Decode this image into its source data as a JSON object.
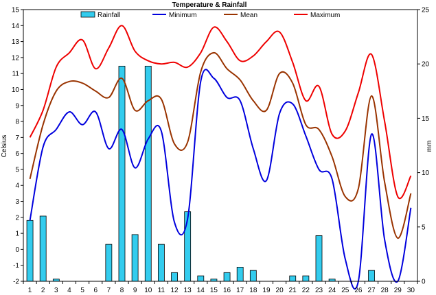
{
  "chart_data": {
    "type": "bar+line",
    "title": "Temperature & Rainfall",
    "ylabel_left": "Celsius",
    "ylabel_right": "mm",
    "x": [
      1,
      2,
      3,
      4,
      5,
      6,
      7,
      8,
      9,
      10,
      11,
      12,
      13,
      14,
      15,
      16,
      17,
      18,
      19,
      20,
      21,
      22,
      23,
      24,
      25,
      26,
      27,
      28,
      29,
      30
    ],
    "x_tick_labels": [
      "1",
      "2",
      "3",
      "4",
      "5",
      "6",
      "7",
      "8",
      "9",
      "10",
      "11",
      "12",
      "13",
      "14",
      "15",
      "16",
      "17",
      "18",
      "19",
      "20",
      "21",
      "22",
      "23",
      "24",
      "25",
      "26",
      "27",
      "28",
      "29",
      "30"
    ],
    "ylim_left": [
      -2,
      15
    ],
    "y_left_ticks": [
      "-2",
      "-1",
      "0",
      "1",
      "2",
      "3",
      "4",
      "5",
      "6",
      "7",
      "8",
      "9",
      "10",
      "11",
      "12",
      "13",
      "14",
      "15"
    ],
    "ylim_right": [
      0,
      25
    ],
    "y_right_ticks": [
      "0",
      "5",
      "10",
      "15",
      "20",
      "25"
    ],
    "legend": [
      "Rainfall",
      "Minimum",
      "Mean",
      "Maximum"
    ],
    "legend_position": "top",
    "colors": {
      "Rainfall": "#33CCEE",
      "Minimum": "#0000DD",
      "Mean": "#993300",
      "Maximum": "#EE0000"
    },
    "series": [
      {
        "name": "Rainfall",
        "axis": "right",
        "kind": "bar",
        "values": [
          5.6,
          6.0,
          0.2,
          0,
          0,
          0,
          3.4,
          19.8,
          4.3,
          19.8,
          3.4,
          0.8,
          6.4,
          0.5,
          0.2,
          0.8,
          1.3,
          1.0,
          0,
          0,
          0.5,
          0.5,
          4.2,
          0.2,
          0,
          0,
          1.0,
          0,
          0,
          0
        ]
      },
      {
        "name": "Minimum",
        "axis": "left",
        "kind": "line",
        "values": [
          1.8,
          6.4,
          7.5,
          8.6,
          7.8,
          8.6,
          6.3,
          7.5,
          5.1,
          6.9,
          7.4,
          1.7,
          1.9,
          10.5,
          10.7,
          9.5,
          9.3,
          6.3,
          4.3,
          8.5,
          9.1,
          7.1,
          5.0,
          4.4,
          -0.6,
          -2.0,
          7.2,
          0.6,
          -2.0,
          2.6
        ]
      },
      {
        "name": "Mean",
        "axis": "left",
        "kind": "line",
        "values": [
          4.4,
          7.8,
          9.9,
          10.5,
          10.4,
          9.9,
          9.5,
          10.7,
          8.7,
          9.3,
          9.4,
          6.6,
          6.7,
          11.1,
          12.3,
          11.3,
          10.6,
          9.3,
          8.7,
          11.0,
          10.4,
          7.8,
          7.5,
          5.8,
          3.3,
          3.8,
          9.6,
          4.2,
          0.7,
          3.5
        ]
      },
      {
        "name": "Maximum",
        "axis": "left",
        "kind": "line",
        "values": [
          7.0,
          8.7,
          11.4,
          12.3,
          13.1,
          11.3,
          12.6,
          14.0,
          12.4,
          11.8,
          11.6,
          11.7,
          11.4,
          12.3,
          13.9,
          13.0,
          11.8,
          12.1,
          13.0,
          13.6,
          11.7,
          9.3,
          10.2,
          7.2,
          7.4,
          9.8,
          12.2,
          8.0,
          3.3,
          4.6
        ]
      }
    ]
  }
}
